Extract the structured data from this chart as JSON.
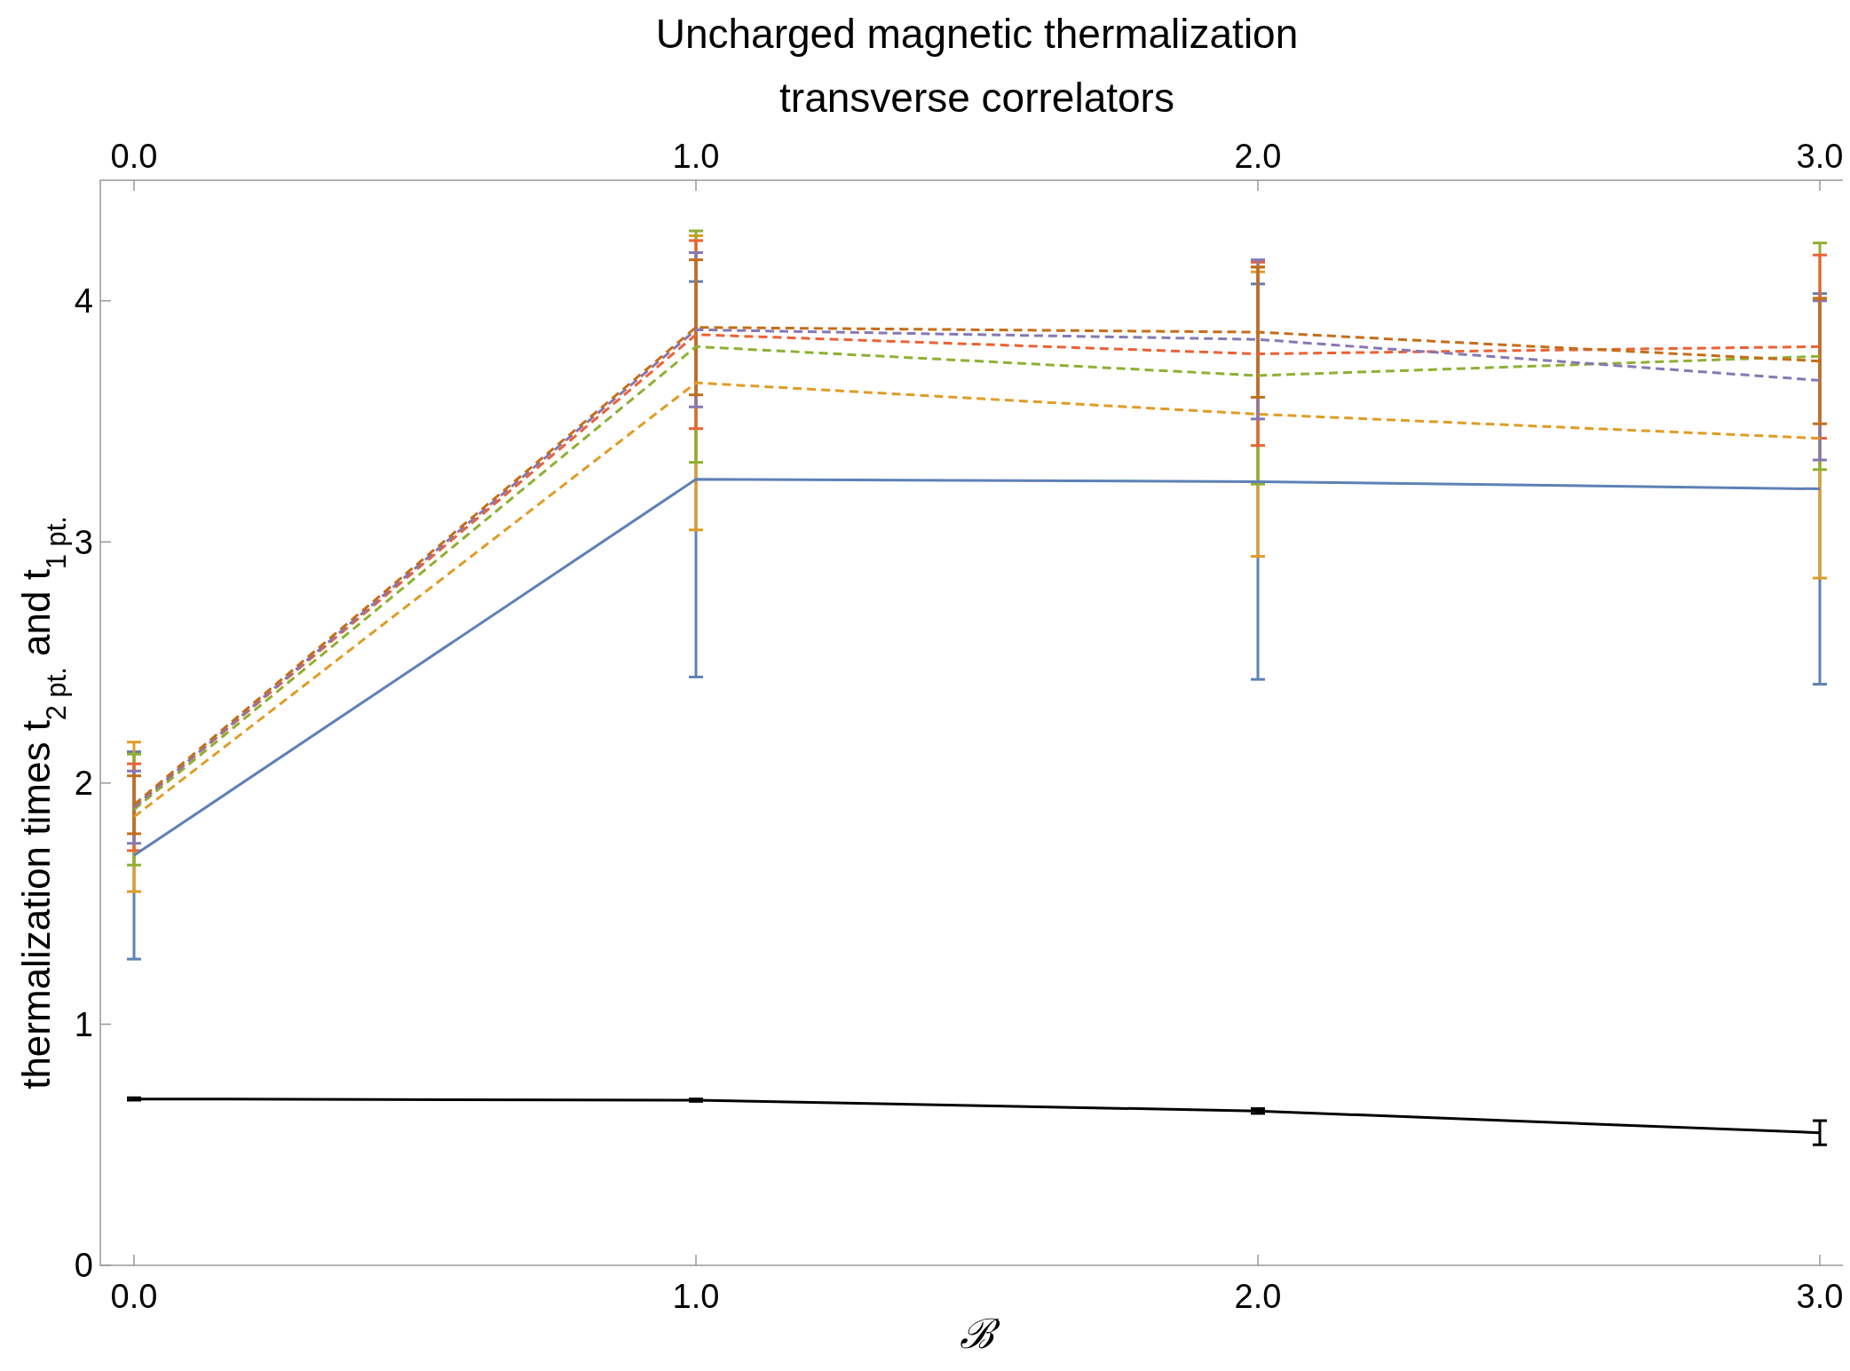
{
  "chart_data": {
    "type": "line",
    "title": "Uncharged magnetic thermalization",
    "subtitle": "transverse correlators",
    "xlabel": "ℬ",
    "ylabel": "thermalization times  t$_{2 pt.}$ and t$_{1 pt.}$",
    "x": [
      0,
      1,
      2,
      3
    ],
    "xlim": [
      -0.06,
      3.06
    ],
    "xticks": [
      {
        "value": 0,
        "label": "0.0"
      },
      {
        "value": 1,
        "label": "1.0"
      },
      {
        "value": 2,
        "label": "2.0"
      },
      {
        "value": 3,
        "label": "3.0"
      }
    ],
    "x2lim": [
      -0.06,
      3.06
    ],
    "x2ticks": [
      {
        "value": 0,
        "label": "0.0"
      },
      {
        "value": 1,
        "label": "1.0"
      },
      {
        "value": 2,
        "label": "2.0"
      },
      {
        "value": 3,
        "label": "3.0"
      }
    ],
    "ylim": [
      0,
      4.5
    ],
    "yticks": [
      0,
      1,
      2,
      3,
      4
    ],
    "grid": false,
    "marker": "none",
    "series": [
      {
        "color": "#5e81b5",
        "line_style": "solid",
        "values": [
          1.7,
          3.26,
          3.25,
          3.22
        ],
        "errors": [
          0.43,
          0.82,
          0.82,
          0.81
        ]
      },
      {
        "color": "#e19c24",
        "line_style": "dashed",
        "values": [
          1.86,
          3.66,
          3.53,
          3.43
        ],
        "errors": [
          0.31,
          0.61,
          0.59,
          0.58
        ]
      },
      {
        "color": "#8fb032",
        "line_style": "dashed",
        "values": [
          1.89,
          3.81,
          3.69,
          3.77
        ],
        "errors": [
          0.23,
          0.48,
          0.45,
          0.47
        ]
      },
      {
        "color": "#eb6235",
        "line_style": "dashed",
        "values": [
          1.9,
          3.86,
          3.78,
          3.81
        ],
        "errors": [
          0.18,
          0.39,
          0.38,
          0.38
        ]
      },
      {
        "color": "#8778b3",
        "line_style": "dashed",
        "values": [
          1.9,
          3.88,
          3.84,
          3.67
        ],
        "errors": [
          0.15,
          0.32,
          0.33,
          0.33
        ]
      },
      {
        "color": "#c56e1a",
        "line_style": "dashed",
        "values": [
          1.91,
          3.89,
          3.87,
          3.75
        ],
        "errors": [
          0.12,
          0.28,
          0.27,
          0.26
        ]
      },
      {
        "color": "#000000",
        "line_style": "solid",
        "values": [
          0.69,
          0.685,
          0.64,
          0.55
        ],
        "errors": [
          0.005,
          0.005,
          0.01,
          0.05
        ]
      }
    ]
  }
}
